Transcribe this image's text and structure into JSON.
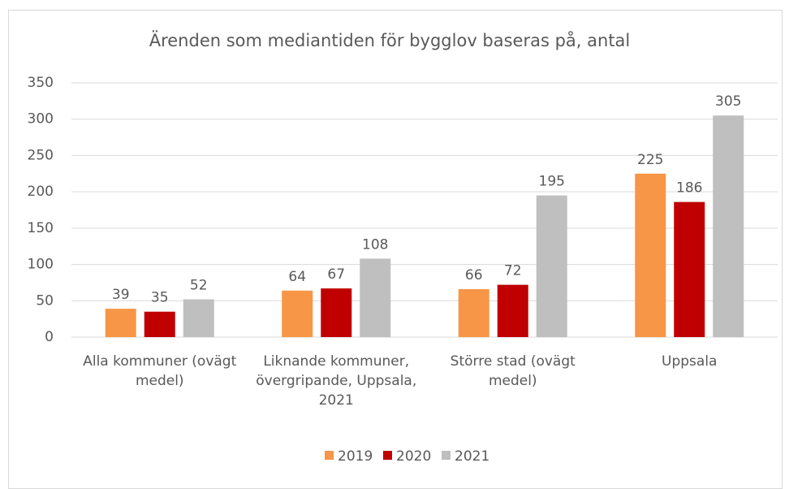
{
  "chart_data": {
    "type": "bar",
    "title": "Ärenden som mediantiden för bygglov baseras på, antal",
    "categories": [
      "Alla kommuner (ovägt medel)",
      "Liknande kommuner, övergripande, Uppsala, 2021",
      "Större stad (ovägt medel)",
      "Uppsala"
    ],
    "series": [
      {
        "name": "2019",
        "color": "#f79646",
        "values": [
          39,
          64,
          66,
          225
        ]
      },
      {
        "name": "2020",
        "color": "#c00000",
        "values": [
          35,
          67,
          72,
          186
        ]
      },
      {
        "name": "2021",
        "color": "#bfbfbf",
        "values": [
          52,
          108,
          195,
          305
        ]
      }
    ],
    "ylim": [
      0,
      350
    ],
    "yticks": [
      0,
      50,
      100,
      150,
      200,
      250,
      300,
      350
    ],
    "grid": true,
    "legend": "bottom"
  }
}
